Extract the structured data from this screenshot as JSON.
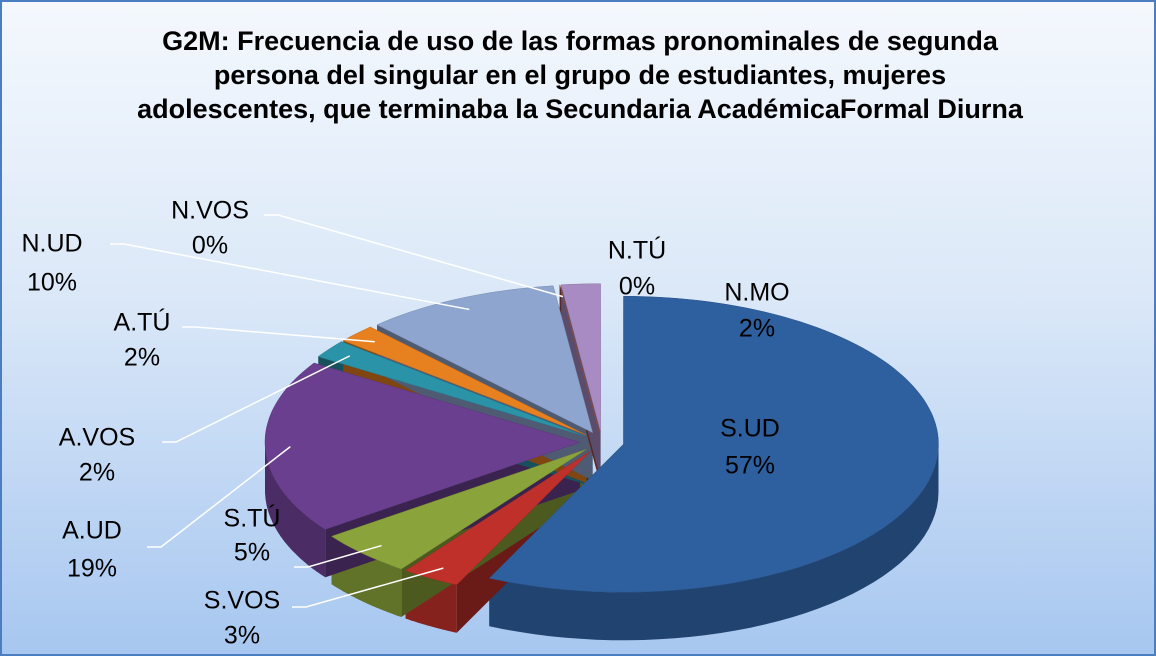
{
  "chart_data": {
    "type": "pie3d",
    "title": "G2M: Frecuencia de uso de las formas pronominales de segunda persona del singular en el grupo de estudiantes, mujeres adolescentes, que terminaba la Secundaria AcadémicaFormal Diurna",
    "categories": [
      "S.UD",
      "S.VOS",
      "S.TÚ",
      "A.UD",
      "A.VOS",
      "A.TÚ",
      "N.UD",
      "N.VOS",
      "N.TÚ",
      "N.MO"
    ],
    "values": [
      57,
      3,
      5,
      19,
      2,
      2,
      10,
      0,
      0,
      2
    ],
    "value_labels": [
      "57%",
      "3%",
      "5%",
      "19%",
      "2%",
      "2%",
      "10%",
      "0%",
      "0%",
      "2%"
    ],
    "colors": [
      "#2e5f9e",
      "#c0302a",
      "#8aa33a",
      "#6b3f8f",
      "#2a93a8",
      "#e7801f",
      "#8ea6cf",
      "#b5cc6a",
      "#a0443f",
      "#a88bc2"
    ]
  }
}
